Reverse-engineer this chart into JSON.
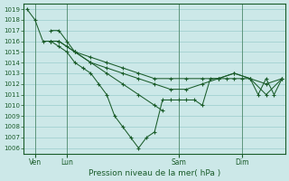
{
  "title": "Pression niveau de la mer( hPa )",
  "bg_color": "#cce8e8",
  "grid_color": "#99cccc",
  "line_color": "#1a5c2a",
  "ylim": [
    1005.5,
    1019.5
  ],
  "yticks": [
    1006,
    1007,
    1008,
    1009,
    1010,
    1011,
    1012,
    1013,
    1014,
    1015,
    1016,
    1017,
    1018,
    1019
  ],
  "xlim": [
    -0.2,
    16.2
  ],
  "xtick_labels": [
    "Ven",
    "Lun",
    "Sam",
    "Dim"
  ],
  "xtick_positions": [
    0.5,
    2.5,
    9.5,
    13.5
  ],
  "series": {
    "s1": {
      "x": [
        0,
        0.5,
        1.0,
        1.5,
        2.0,
        2.5,
        3.0,
        4.0,
        5.0,
        6.0,
        7.0,
        8.0,
        9.0,
        10.0,
        11.0,
        12.0,
        13.0,
        14.0,
        15.0,
        16.0
      ],
      "y": [
        1019,
        1018,
        1016,
        1016,
        1016,
        1015.5,
        1015,
        1014.5,
        1014,
        1013.5,
        1013,
        1012.5,
        1012.5,
        1012.5,
        1012.5,
        1012.5,
        1013,
        1012.5,
        1012,
        1012.5
      ]
    },
    "s2": {
      "x": [
        1.5,
        2.0,
        2.5,
        3.0,
        4.0,
        5.0,
        6.0,
        7.0,
        8.0,
        9.0,
        10.0,
        11.0,
        12.0,
        13.0,
        14.0,
        15.0,
        16.0
      ],
      "y": [
        1017,
        1017,
        1016,
        1015,
        1014,
        1013.5,
        1013,
        1012.5,
        1012,
        1011.5,
        1011.5,
        1012,
        1012.5,
        1013,
        1012.5,
        1011,
        1012.5
      ]
    },
    "s3": {
      "x": [
        1.5,
        2.0,
        2.5,
        3.0,
        3.5,
        4.0,
        4.5,
        5.0,
        5.5,
        6.0,
        6.5,
        7.0,
        7.5,
        8.0,
        8.5,
        9.0,
        9.5,
        10.0,
        10.5,
        11.0,
        11.5,
        12.0,
        12.5,
        13.0,
        13.5,
        14.0,
        14.5,
        15.0,
        15.5,
        16.0
      ],
      "y": [
        1016,
        1015.5,
        1015,
        1014,
        1013.5,
        1013,
        1012,
        1011,
        1009,
        1008,
        1007,
        1006,
        1007,
        1007.5,
        1010.5,
        1010.5,
        1010.5,
        1010.5,
        1010.5,
        1010,
        1012.5,
        1012.5,
        1012.5,
        1012.5,
        1012.5,
        1012.5,
        1011,
        1012.5,
        1011,
        1012.5
      ]
    },
    "s4": {
      "x": [
        1.5,
        2.0,
        3.0,
        4.0,
        5.0,
        6.0,
        7.0,
        8.0,
        8.5
      ],
      "y": [
        1016,
        1016,
        1015,
        1014,
        1013,
        1012,
        1011,
        1010,
        1009.5
      ]
    }
  }
}
